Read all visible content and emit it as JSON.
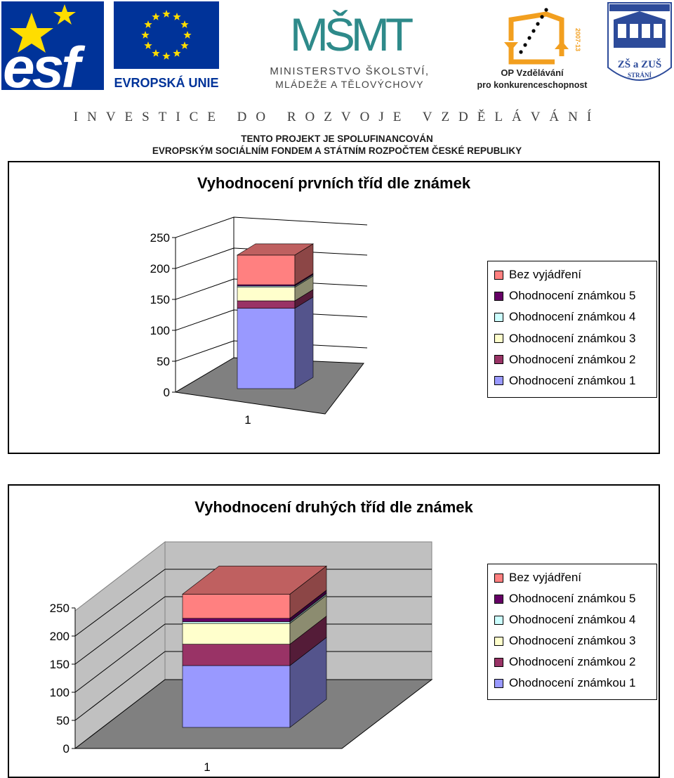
{
  "header": {
    "esf_text": "esf",
    "eu_label": "EVROPSKÁ UNIE",
    "msmt_logo": "MŠMT",
    "ministry_line1": "MINISTERSTVO ŠKOLSTVÍ,",
    "ministry_line2": "MLÁDEŽE A TĚLOVÝCHOVY",
    "op_line1": "OP Vzdělávání",
    "op_line2": "pro konkurenceschopnost",
    "op_badge": "2007-13",
    "school_line1": "ZŠ a ZUŠ",
    "school_line2": "STRÁNÍ",
    "invest_line": "INVESTICE DO ROZVOJE VZDĚLÁVÁNÍ",
    "cofin_line1": "TENTO PROJEKT JE SPOLUFINANCOVÁN",
    "cofin_line2": "EVROPSKÝM SOCIÁLNÍM FONDEM A STÁTNÍM ROZPOČTEM ČESKÉ REPUBLIKY"
  },
  "colors": {
    "grade1": "#9999FF",
    "grade2": "#993366",
    "grade3": "#FFFFCC",
    "grade4": "#CCFFFF",
    "grade5": "#660066",
    "none": "#FF8080",
    "eu_blue": "#003399",
    "eu_star": "#FFDD00",
    "msmt_teal": "#2E8A8A",
    "op_orange": "#F29F1F"
  },
  "chart_data": [
    {
      "type": "bar",
      "stacked": true,
      "three_d": true,
      "title": "Vyhodnocení prvních tříd dle známek",
      "categories": [
        "1"
      ],
      "y_ticks": [
        "0",
        "50",
        "100",
        "150",
        "200",
        "250"
      ],
      "ylim": [
        0,
        250
      ],
      "legend_position": "right",
      "series": [
        {
          "name": "Ohodnocení známkou 1",
          "values": [
            130
          ],
          "color_key": "grade1"
        },
        {
          "name": "Ohodnocení známkou 2",
          "values": [
            12
          ],
          "color_key": "grade2"
        },
        {
          "name": "Ohodnocení známkou 3",
          "values": [
            22
          ],
          "color_key": "grade3"
        },
        {
          "name": "Ohodnocení známkou 4",
          "values": [
            2
          ],
          "color_key": "grade4"
        },
        {
          "name": "Ohodnocení známkou 5",
          "values": [
            2
          ],
          "color_key": "grade5"
        },
        {
          "name": "Bez vyjádření",
          "values": [
            48
          ],
          "color_key": "none"
        }
      ]
    },
    {
      "type": "bar",
      "stacked": true,
      "three_d": true,
      "title": "Vyhodnocení  druhých tříd dle známek",
      "categories": [
        "1"
      ],
      "y_ticks": [
        "0",
        "50",
        "100",
        "150",
        "200",
        "250"
      ],
      "ylim": [
        0,
        250
      ],
      "legend_position": "right",
      "series": [
        {
          "name": "Ohodnocení známkou 1",
          "values": [
            110
          ],
          "color_key": "grade1"
        },
        {
          "name": "Ohodnocení známkou 2",
          "values": [
            38
          ],
          "color_key": "grade2"
        },
        {
          "name": "Ohodnocení známkou 3",
          "values": [
            37
          ],
          "color_key": "grade3"
        },
        {
          "name": "Ohodnocení známkou 4",
          "values": [
            3
          ],
          "color_key": "grade4"
        },
        {
          "name": "Ohodnocení známkou 5",
          "values": [
            6
          ],
          "color_key": "grade5"
        },
        {
          "name": "Bez vyjádření",
          "values": [
            43
          ],
          "color_key": "none"
        }
      ]
    }
  ]
}
